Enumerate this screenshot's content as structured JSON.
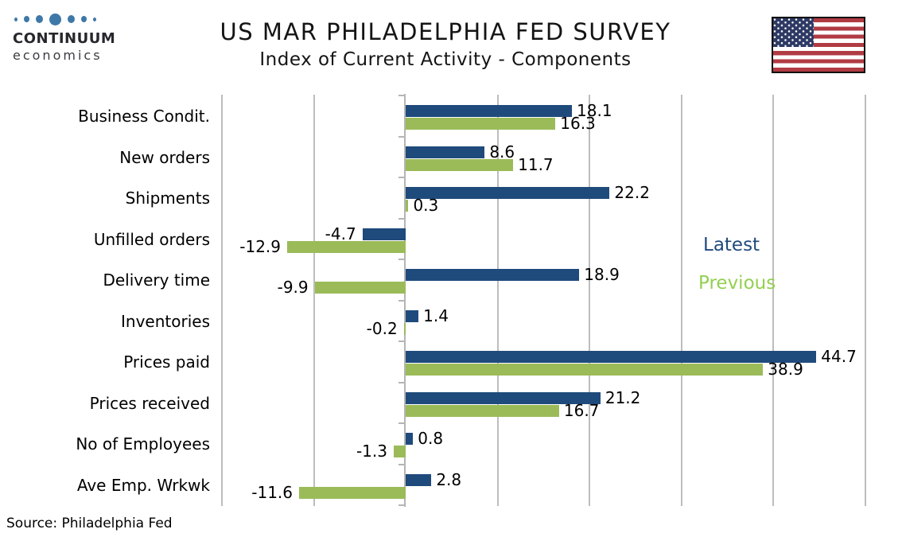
{
  "header": {
    "logo": {
      "name": "CONTINUUM",
      "subname": "economics"
    },
    "title": "US MAR PHILADELPHIA FED SURVEY",
    "subtitle": "Index of Current Activity - Components"
  },
  "source_note": "Source: Philadelphia Fed",
  "colors": {
    "bar_latest": "#1F4A7C",
    "bar_previous": "#9BBB59",
    "legend_latest": "#1F4A7C",
    "legend_previous": "#92D050",
    "gridline": "#BDBDBD",
    "axis": "#B5B5B5",
    "value_label": "#000000",
    "logo_dot": "#3E78A8",
    "flag_red": "#B13B43",
    "flag_blue": "#2E3A64"
  },
  "chart_data": {
    "type": "bar",
    "orientation": "horizontal",
    "title": "US MAR PHILADELPHIA FED SURVEY",
    "subtitle": "Index of Current Activity - Components",
    "categories": [
      "Business Condit.",
      "New orders",
      "Shipments",
      "Unfilled orders",
      "Delivery time",
      "Inventories",
      "Prices paid",
      "Prices received",
      "No of Employees",
      "Ave Emp. Wrkwk"
    ],
    "series": [
      {
        "name": "Latest",
        "values": [
          18.1,
          8.6,
          22.2,
          -4.7,
          18.9,
          1.4,
          44.7,
          21.2,
          0.8,
          2.8
        ]
      },
      {
        "name": "Previous",
        "values": [
          16.3,
          11.7,
          0.3,
          -12.9,
          -9.9,
          -0.2,
          38.9,
          16.7,
          -1.3,
          -11.6
        ]
      }
    ],
    "xlim": [
      -20,
      50
    ],
    "gridline_step": 10,
    "grid": true,
    "x_tick_labels_visible": false,
    "value_labels_visible": true,
    "legend": {
      "position": "right-middle",
      "entries": [
        "Latest",
        "Previous"
      ]
    }
  }
}
